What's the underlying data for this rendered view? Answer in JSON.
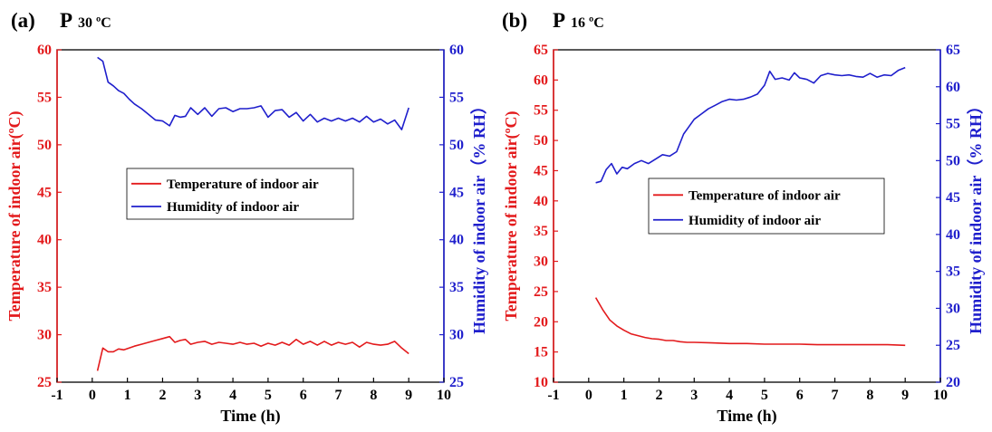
{
  "chart_data": [
    {
      "type": "line",
      "panel_label": "(a)",
      "title_main": "P",
      "title_sub": "30 ºC",
      "xlabel": "Time (h)",
      "ylabel": "Temperature of indoor air(ºC)",
      "y2label": "Humidity of indoor air（% RH）",
      "xlim": [
        -1,
        10
      ],
      "ylim": [
        25,
        60
      ],
      "y2lim": [
        25,
        60
      ],
      "xticks": [
        "-1",
        "0",
        "1",
        "2",
        "3",
        "4",
        "5",
        "6",
        "7",
        "8",
        "9",
        "10"
      ],
      "yticks": [
        "25",
        "30",
        "35",
        "40",
        "45",
        "50",
        "55",
        "60"
      ],
      "y2ticks": [
        "25",
        "30",
        "35",
        "40",
        "45",
        "50",
        "55",
        "60"
      ],
      "legend_position": "center",
      "legend": [
        "Temperature of indoor air",
        "Humidity of indoor air"
      ],
      "colors": {
        "temperature": "#e31a1c",
        "humidity": "#1f1fcc"
      },
      "series": [
        {
          "name": "Temperature of indoor air",
          "axis": "left",
          "x": [
            0.15,
            0.3,
            0.45,
            0.6,
            0.75,
            0.9,
            1.05,
            1.2,
            1.4,
            1.6,
            1.8,
            2.0,
            2.2,
            2.35,
            2.5,
            2.65,
            2.8,
            3.0,
            3.2,
            3.4,
            3.6,
            3.8,
            4.0,
            4.2,
            4.4,
            4.6,
            4.8,
            5.0,
            5.2,
            5.4,
            5.6,
            5.8,
            6.0,
            6.2,
            6.4,
            6.6,
            6.8,
            7.0,
            7.2,
            7.4,
            7.6,
            7.8,
            8.0,
            8.2,
            8.4,
            8.6,
            8.8,
            9.0
          ],
          "values": [
            26.2,
            28.6,
            28.2,
            28.2,
            28.5,
            28.4,
            28.6,
            28.8,
            29.0,
            29.2,
            29.4,
            29.6,
            29.8,
            29.2,
            29.4,
            29.5,
            29.0,
            29.2,
            29.3,
            29.0,
            29.2,
            29.1,
            29.0,
            29.2,
            29.0,
            29.1,
            28.8,
            29.1,
            28.9,
            29.2,
            28.9,
            29.5,
            29.0,
            29.3,
            28.9,
            29.3,
            28.9,
            29.2,
            29.0,
            29.2,
            28.7,
            29.2,
            29.0,
            28.9,
            29.0,
            29.3,
            28.6,
            28.0
          ]
        },
        {
          "name": "Humidity of indoor air",
          "axis": "right",
          "x": [
            0.15,
            0.3,
            0.45,
            0.6,
            0.75,
            0.9,
            1.05,
            1.2,
            1.4,
            1.6,
            1.8,
            2.0,
            2.2,
            2.35,
            2.5,
            2.65,
            2.8,
            3.0,
            3.2,
            3.4,
            3.6,
            3.8,
            4.0,
            4.2,
            4.4,
            4.6,
            4.8,
            5.0,
            5.2,
            5.4,
            5.6,
            5.8,
            6.0,
            6.2,
            6.4,
            6.6,
            6.8,
            7.0,
            7.2,
            7.4,
            7.6,
            7.8,
            8.0,
            8.2,
            8.4,
            8.6,
            8.8,
            9.0
          ],
          "values": [
            59.2,
            58.8,
            56.6,
            56.2,
            55.7,
            55.4,
            54.8,
            54.3,
            53.8,
            53.2,
            52.6,
            52.5,
            52.0,
            53.1,
            52.9,
            53.0,
            53.9,
            53.2,
            53.9,
            53.0,
            53.8,
            53.9,
            53.5,
            53.8,
            53.8,
            53.9,
            54.1,
            52.9,
            53.6,
            53.7,
            52.9,
            53.4,
            52.5,
            53.2,
            52.4,
            52.8,
            52.5,
            52.8,
            52.5,
            52.8,
            52.4,
            53.0,
            52.4,
            52.7,
            52.2,
            52.6,
            51.6,
            53.9
          ]
        }
      ]
    },
    {
      "type": "line",
      "panel_label": "(b)",
      "title_main": "P",
      "title_sub": "16 ºC",
      "xlabel": "Time (h)",
      "ylabel": "Temperature of indoor air(ºC)",
      "y2label": "Humidity of indoor air（% RH）",
      "xlim": [
        -1,
        10
      ],
      "ylim": [
        10,
        65
      ],
      "y2lim": [
        20,
        65
      ],
      "xticks": [
        "-1",
        "0",
        "1",
        "2",
        "3",
        "4",
        "5",
        "6",
        "7",
        "8",
        "9",
        "10"
      ],
      "yticks": [
        "10",
        "15",
        "20",
        "25",
        "30",
        "35",
        "40",
        "45",
        "50",
        "55",
        "60",
        "65"
      ],
      "y2ticks": [
        "20",
        "25",
        "30",
        "35",
        "40",
        "45",
        "50",
        "55",
        "60",
        "65"
      ],
      "legend_position": "center",
      "legend": [
        "Temperature of indoor air",
        "Humidity of indoor air"
      ],
      "colors": {
        "temperature": "#e31a1c",
        "humidity": "#1f1fcc"
      },
      "series": [
        {
          "name": "Temperature of indoor air",
          "axis": "left",
          "x": [
            0.2,
            0.4,
            0.6,
            0.8,
            1.0,
            1.2,
            1.4,
            1.6,
            1.8,
            2.0,
            2.2,
            2.4,
            2.6,
            2.8,
            3.0,
            3.5,
            4.0,
            4.5,
            5.0,
            5.5,
            6.0,
            6.5,
            7.0,
            7.5,
            8.0,
            8.5,
            9.0
          ],
          "values": [
            24.0,
            22.0,
            20.3,
            19.3,
            18.6,
            18.0,
            17.7,
            17.4,
            17.2,
            17.1,
            16.9,
            16.9,
            16.7,
            16.6,
            16.6,
            16.5,
            16.4,
            16.4,
            16.3,
            16.3,
            16.3,
            16.2,
            16.2,
            16.2,
            16.2,
            16.2,
            16.1
          ]
        },
        {
          "name": "Humidity of indoor air",
          "axis": "right",
          "x": [
            0.2,
            0.35,
            0.5,
            0.65,
            0.8,
            0.95,
            1.1,
            1.3,
            1.5,
            1.7,
            1.9,
            2.1,
            2.3,
            2.5,
            2.7,
            2.85,
            3.0,
            3.2,
            3.4,
            3.6,
            3.8,
            4.0,
            4.2,
            4.4,
            4.6,
            4.8,
            5.0,
            5.15,
            5.3,
            5.5,
            5.7,
            5.85,
            6.0,
            6.2,
            6.4,
            6.6,
            6.8,
            7.0,
            7.2,
            7.4,
            7.6,
            7.8,
            8.0,
            8.2,
            8.4,
            8.6,
            8.8,
            9.0
          ],
          "values": [
            47.0,
            47.2,
            48.8,
            49.6,
            48.2,
            49.1,
            48.9,
            49.6,
            50.0,
            49.6,
            50.2,
            50.8,
            50.6,
            51.2,
            53.6,
            54.6,
            55.6,
            56.3,
            57.0,
            57.5,
            58.0,
            58.3,
            58.2,
            58.3,
            58.6,
            59.0,
            60.2,
            62.1,
            61.0,
            61.2,
            60.9,
            61.9,
            61.2,
            61.0,
            60.5,
            61.5,
            61.8,
            61.6,
            61.5,
            61.6,
            61.4,
            61.3,
            61.8,
            61.3,
            61.6,
            61.5,
            62.2,
            62.6
          ]
        }
      ]
    }
  ]
}
